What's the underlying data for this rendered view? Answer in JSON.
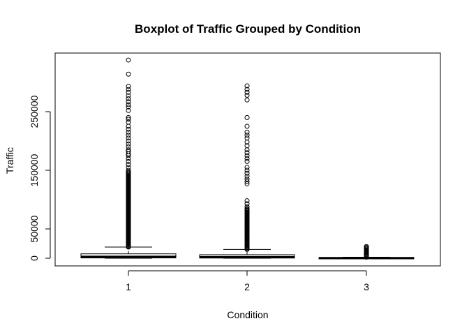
{
  "chart_data": {
    "type": "boxplot",
    "title": "Boxplot of Traffic Grouped by Condition",
    "xlabel": "Condition",
    "ylabel": "Traffic",
    "categories": [
      "1",
      "2",
      "3"
    ],
    "ylim": [
      0,
      340000
    ],
    "yticks": [
      0,
      50000,
      150000,
      250000
    ],
    "ytick_labels": [
      "0",
      "50000",
      "150000",
      "250000"
    ],
    "grid": false,
    "legend": "none",
    "boxes": [
      {
        "category": "1",
        "whisker_low": 0,
        "q1": 500,
        "median": 2500,
        "q3": 7500,
        "whisker_high": 19000,
        "outliers_dense_range": [
          19000,
          148000
        ],
        "outliers_sparse": [
          150000,
          155000,
          160000,
          165000,
          170000,
          175000,
          178000,
          182000,
          185000,
          190000,
          195000,
          200000,
          205000,
          210000,
          215000,
          220000,
          225000,
          232000,
          237000,
          240000,
          252000,
          258000,
          262000,
          267000,
          272000,
          277000,
          283000,
          288000,
          293000,
          314000,
          338000
        ]
      },
      {
        "category": "2",
        "whisker_low": 0,
        "q1": 300,
        "median": 2000,
        "q3": 6000,
        "whisker_high": 15000,
        "outliers_dense_range": [
          15000,
          85000
        ],
        "outliers_sparse": [
          88000,
          93000,
          98000,
          127000,
          131000,
          135000,
          140000,
          145000,
          150000,
          155000,
          165000,
          170000,
          175000,
          180000,
          185000,
          192000,
          198000,
          205000,
          210000,
          215000,
          225000,
          240000,
          270000,
          278000,
          283000,
          288000,
          294000
        ]
      },
      {
        "category": "3",
        "whisker_low": 0,
        "q1": 100,
        "median": 300,
        "q3": 700,
        "whisker_high": 1800,
        "outliers_dense_range": [
          1800,
          13000
        ],
        "outliers_sparse": [
          14000,
          15500,
          17000,
          18500,
          20000
        ]
      }
    ]
  }
}
